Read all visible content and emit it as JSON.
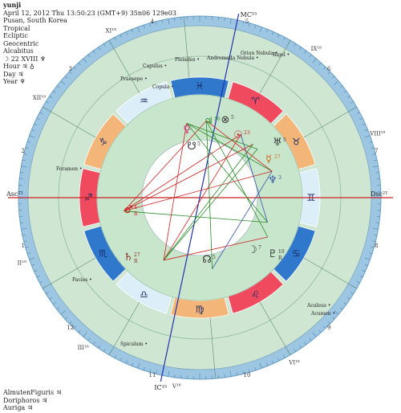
{
  "header": {
    "name": "yunji",
    "datetime": "April 12, 2012  Thu  13:50:23 (GMT+9) 35n06  129e03",
    "place": "Pusan, South Korea",
    "zodiac": "Tropical",
    "coords": "Ecliptic",
    "centric": "Geocentric",
    "houses": "Alcabitus",
    "moon_day": "☽ 22 XVIII ♆",
    "hour": "Hour ♃ ♁",
    "day": "Day ♃",
    "year": "Year ♆"
  },
  "footer": {
    "almuten": "AlmutenFiguris ♃",
    "doriphoros": "Doriphoros ♃",
    "auriga": "Auriga ♃"
  },
  "angles": {
    "asc": "Asc²¹",
    "dsc": "Dsc²¹",
    "mc": "MC¹⁵",
    "ic": "IC¹⁵"
  },
  "house_numbers": [
    "1",
    "2",
    "3",
    "4",
    "5",
    "6",
    "7",
    "8",
    "9",
    "10",
    "11",
    "12"
  ],
  "house_cusps": [
    "II¹⁹",
    "III¹⁸",
    "V¹⁸",
    "VI¹⁸",
    "VIII¹⁹",
    "IX¹⁸",
    "XI¹⁸",
    "XII¹⁸"
  ],
  "signs": [
    {
      "glyph": "♈",
      "name": "aries",
      "color": "#f04a5e"
    },
    {
      "glyph": "♉",
      "name": "taurus",
      "color": "#f4b678"
    },
    {
      "glyph": "♊",
      "name": "gemini",
      "color": "#dceef8"
    },
    {
      "glyph": "♋",
      "name": "cancer",
      "color": "#2f78cc"
    },
    {
      "glyph": "♌",
      "name": "leo",
      "color": "#f04a5e"
    },
    {
      "glyph": "♍",
      "name": "virgo",
      "color": "#f4b678"
    },
    {
      "glyph": "♎",
      "name": "libra",
      "color": "#dceef8"
    },
    {
      "glyph": "♏",
      "name": "scorpio",
      "color": "#2f78cc"
    },
    {
      "glyph": "♐",
      "name": "sagittarius",
      "color": "#f04a5e"
    },
    {
      "glyph": "♑",
      "name": "capricorn",
      "color": "#f4b678"
    },
    {
      "glyph": "♒",
      "name": "aquarius",
      "color": "#dceef8"
    },
    {
      "glyph": "♓",
      "name": "pisces",
      "color": "#2f78cc"
    }
  ],
  "stars": [
    "Capulus",
    "Pleiades",
    "Andromeda Nebula",
    "Orion Nebula",
    "Rigel",
    "Praesepe",
    "Copula",
    "Foramen",
    "Facies",
    "Spiculum",
    "Aculeus",
    "Acumen"
  ],
  "planets": [
    {
      "glyph": "♄",
      "label": "27",
      "sub": "R",
      "name": "saturn",
      "color": "#8b2a2a"
    },
    {
      "glyph": "☊",
      "label": "5",
      "name": "node",
      "color": "#333"
    },
    {
      "glyph": "☽",
      "label": "7",
      "name": "moon",
      "color": "#333"
    },
    {
      "glyph": "♇",
      "label": "10",
      "sub": "R",
      "name": "pluto",
      "color": "#333"
    },
    {
      "glyph": "♆",
      "label": "3",
      "name": "neptune",
      "color": "#3355aa"
    },
    {
      "glyph": "♅",
      "label": "5",
      "name": "uranus",
      "color": "#333"
    },
    {
      "glyph": "☿",
      "label": "27",
      "name": "mercury",
      "color": "#d2691e"
    },
    {
      "glyph": "☉",
      "label": "23",
      "name": "sun",
      "color": "#c22"
    },
    {
      "glyph": "⊗",
      "label": "5",
      "name": "part-of-fortune",
      "color": "#333"
    },
    {
      "glyph": "♃",
      "label": "16",
      "name": "jupiter",
      "color": "#2a8a2a"
    },
    {
      "glyph": "♀",
      "label": "",
      "name": "venus",
      "color": "#cc3377"
    },
    {
      "glyph": "☋",
      "label": "5",
      "name": "south-node",
      "color": "#333"
    },
    {
      "glyph": "♂",
      "label": "4",
      "sub": "R",
      "name": "mars",
      "color": "#c22"
    }
  ],
  "colors": {
    "outer_ring": "#9cc6e2",
    "house_ring": "#cfe6d2",
    "inner_ring": "#c8e6cc",
    "center": "#ffffff",
    "asc_line": "#cc2222",
    "mc_line": "#2233aa"
  }
}
